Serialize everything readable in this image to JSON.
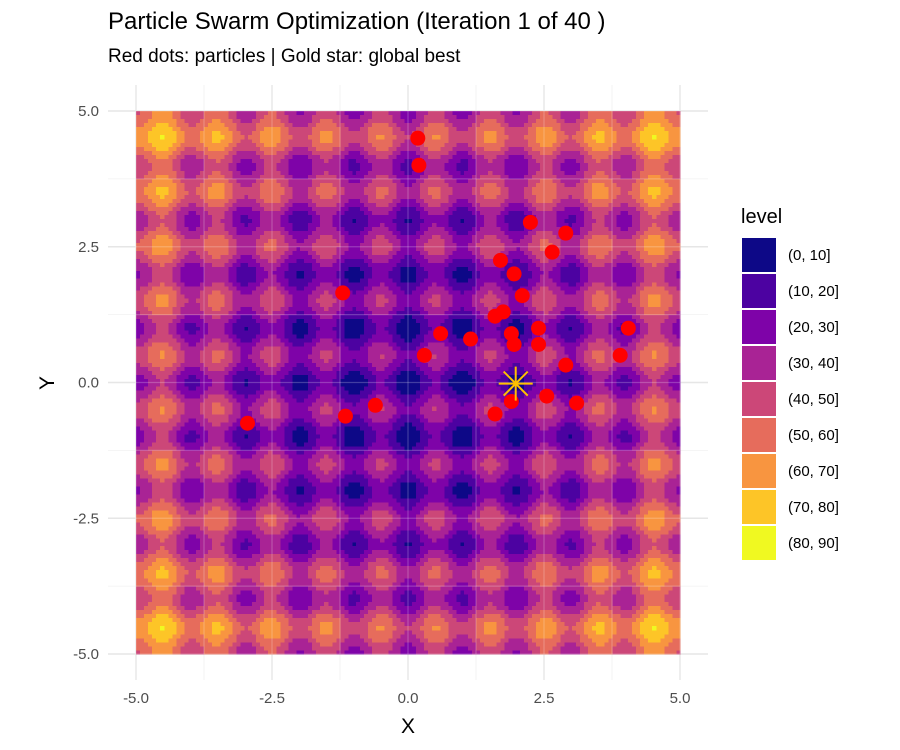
{
  "title": "Particle Swarm Optimization (Iteration 1 of 40 )",
  "subtitle": "Red dots: particles | Gold star: global best",
  "chart_data": {
    "type": "scatter",
    "background": "contour (Rastrigin-like function), filled by level bands",
    "xlabel": "X",
    "ylabel": "Y",
    "xlim": [
      -5,
      5
    ],
    "ylim": [
      -5,
      5
    ],
    "xticks": [
      "-5.0",
      "-2.5",
      "0.0",
      "2.5",
      "5.0"
    ],
    "yticks": [
      "-5.0",
      "-2.5",
      "0.0",
      "2.5",
      "5.0"
    ],
    "grid": true,
    "legend": {
      "title": "level",
      "placement": "right",
      "items": [
        {
          "label": "(0, 10]",
          "color": "#0d0887"
        },
        {
          "label": "(10, 20]",
          "color": "#4c02a1"
        },
        {
          "label": "(20, 30]",
          "color": "#7e03a8"
        },
        {
          "label": "(30, 40]",
          "color": "#a92395"
        },
        {
          "label": "(40, 50]",
          "color": "#cc4778"
        },
        {
          "label": "(50, 60]",
          "color": "#e66c5c"
        },
        {
          "label": "(60, 70]",
          "color": "#f89540"
        },
        {
          "label": "(70, 80]",
          "color": "#fdc527"
        },
        {
          "label": "(80, 90]",
          "color": "#f0f921"
        }
      ]
    },
    "series": [
      {
        "name": "particles",
        "color": "#ff0000",
        "points": [
          [
            0.18,
            4.5
          ],
          [
            0.2,
            4.0
          ],
          [
            2.25,
            2.95
          ],
          [
            2.9,
            2.75
          ],
          [
            2.65,
            2.4
          ],
          [
            1.7,
            2.25
          ],
          [
            1.95,
            2.0
          ],
          [
            2.1,
            1.6
          ],
          [
            -1.2,
            1.65
          ],
          [
            1.75,
            1.3
          ],
          [
            1.6,
            1.22
          ],
          [
            0.6,
            0.9
          ],
          [
            1.15,
            0.8
          ],
          [
            1.9,
            0.9
          ],
          [
            1.95,
            0.7
          ],
          [
            2.4,
            1.0
          ],
          [
            2.4,
            0.7
          ],
          [
            0.3,
            0.5
          ],
          [
            3.9,
            0.5
          ],
          [
            2.9,
            0.32
          ],
          [
            4.05,
            1.0
          ],
          [
            1.9,
            -0.35
          ],
          [
            2.55,
            -0.25
          ],
          [
            3.1,
            -0.38
          ],
          [
            1.6,
            -0.58
          ],
          [
            -0.6,
            -0.42
          ],
          [
            -1.15,
            -0.62
          ],
          [
            -2.95,
            -0.75
          ]
        ]
      },
      {
        "name": "global best",
        "color": "#ffc000",
        "points": [
          [
            1.98,
            -0.02
          ]
        ]
      }
    ]
  }
}
